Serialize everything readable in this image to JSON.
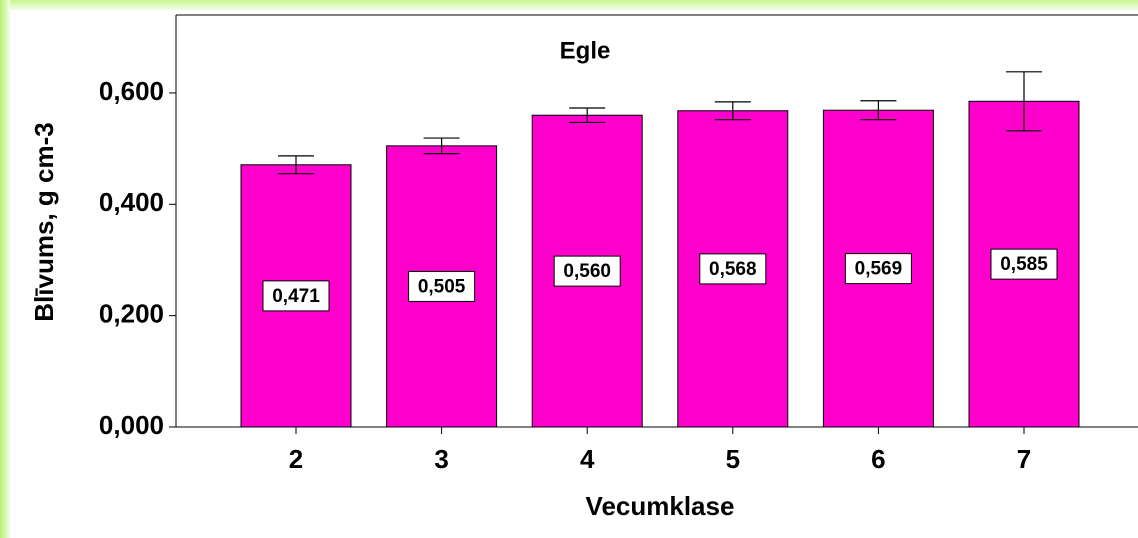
{
  "chart_data": {
    "type": "bar",
    "title": "Egle",
    "x_label": "Vecumklase",
    "y_label": "Blīvums, g cm-3",
    "categories": [
      "2",
      "3",
      "4",
      "5",
      "6",
      "7"
    ],
    "values": [
      0.471,
      0.505,
      0.56,
      0.568,
      0.569,
      0.585
    ],
    "value_labels": [
      "0,471",
      "0,505",
      "0,560",
      "0,568",
      "0,569",
      "0,585"
    ],
    "errors": [
      0.016,
      0.014,
      0.013,
      0.016,
      0.017,
      0.053
    ],
    "color": "#ff00cc",
    "ylim": [
      0,
      0.74
    ],
    "yticks": [
      {
        "value": 0,
        "label": "0,000"
      },
      {
        "value": 0.2,
        "label": "0,200"
      },
      {
        "value": 0.4,
        "label": "0,400"
      },
      {
        "value": 0.6,
        "label": "0,600"
      }
    ],
    "grid": false
  }
}
